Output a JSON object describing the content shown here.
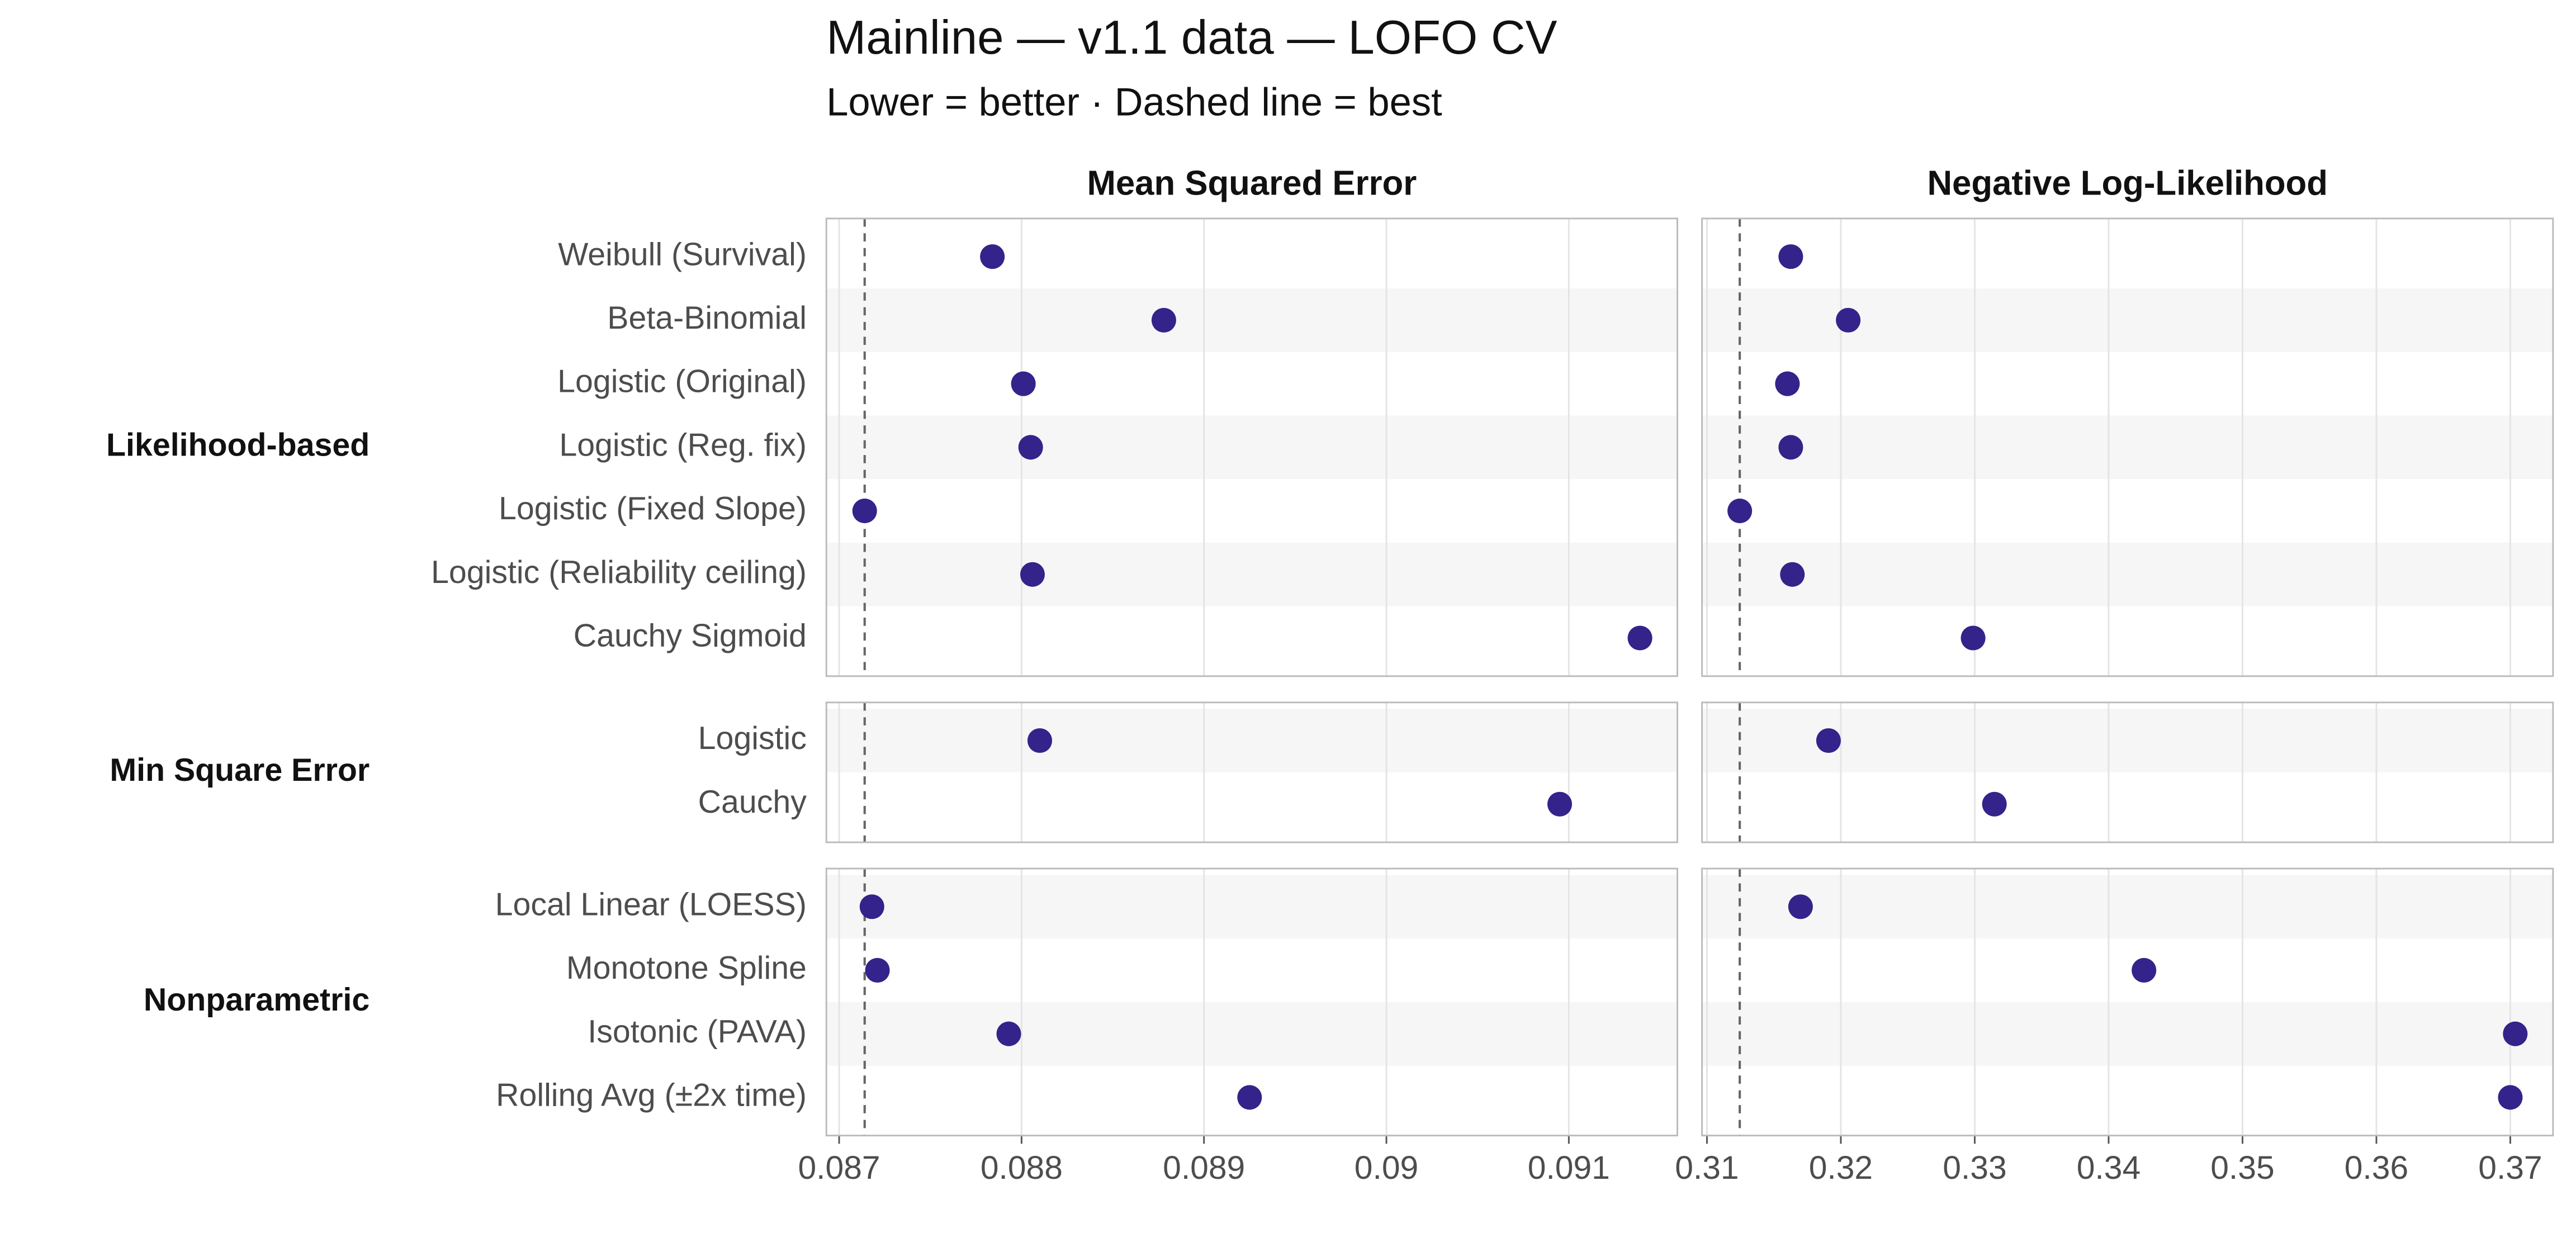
{
  "chart_data": {
    "type": "dot",
    "title": "Mainline — v1.1 data — LOFO CV",
    "subtitle": "Lower = better · Dashed line = best",
    "color": "#33238a",
    "groups": [
      {
        "name": "Likelihood-based",
        "categories": [
          "Weibull (Survival)",
          "Beta-Binomial",
          "Logistic (Original)",
          "Logistic (Reg. fix)",
          "Logistic (Fixed Slope)",
          "Logistic (Reliability ceiling)",
          "Cauchy Sigmoid"
        ]
      },
      {
        "name": "Min Square Error",
        "categories": [
          "Logistic",
          "Cauchy"
        ]
      },
      {
        "name": "Nonparametric",
        "categories": [
          "Local Linear (LOESS)",
          "Monotone Spline",
          "Isotonic (PAVA)",
          "Rolling Avg (±2x time)"
        ]
      }
    ],
    "panels": [
      {
        "title": "Mean Squared Error",
        "xlim": [
          0.08693,
          0.091595
        ],
        "xticks": [
          0.087,
          0.088,
          0.089,
          0.09,
          0.091
        ],
        "best": 0.08714,
        "values": [
          0.08784,
          0.08878,
          0.08801,
          0.08805,
          0.08714,
          0.08806,
          0.09139,
          0.0881,
          0.09095,
          0.08718,
          0.08721,
          0.08793,
          0.08925
        ]
      },
      {
        "title": "Negative Log-Likelihood",
        "xlim": [
          0.30963,
          0.37319
        ],
        "xticks": [
          0.31,
          0.32,
          0.33,
          0.34,
          0.35,
          0.36,
          0.37
        ],
        "best": 0.31245,
        "values": [
          0.31626,
          0.32055,
          0.31601,
          0.31626,
          0.31245,
          0.31638,
          0.32988,
          0.31908,
          0.33147,
          0.31699,
          0.34264,
          0.37037,
          0.37
        ]
      }
    ]
  }
}
